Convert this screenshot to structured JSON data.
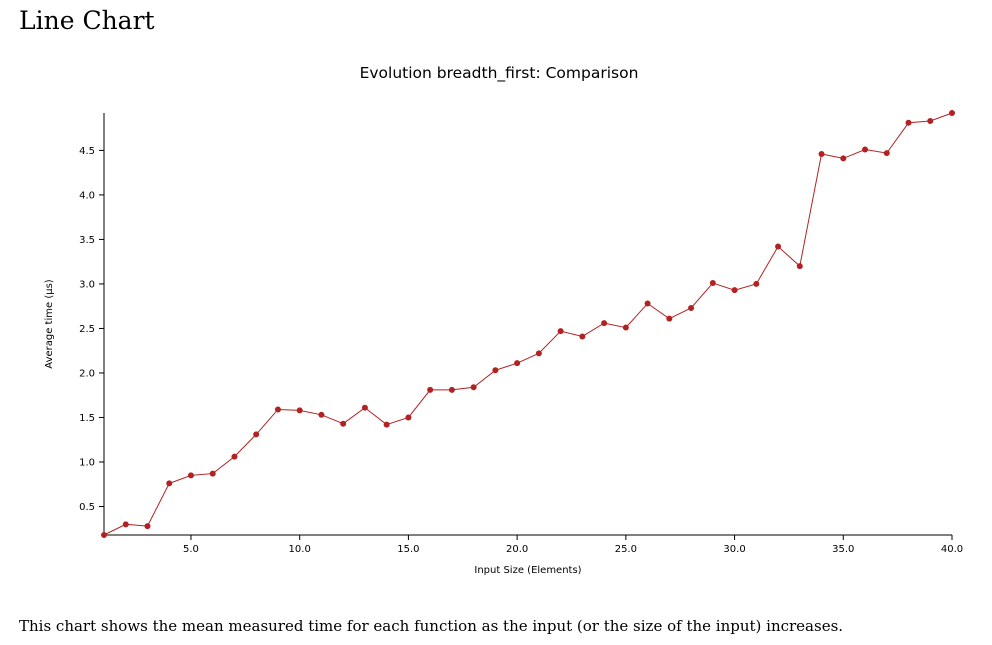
{
  "page": {
    "heading": "Line Chart",
    "description": "This chart shows the mean measured time for each function as the input (or the size of the input) increases."
  },
  "chart_data": {
    "type": "line",
    "title": "Evolution breadth_first: Comparison",
    "xlabel": "Input Size (Elements)",
    "ylabel": "Average time (µs)",
    "xlim": [
      1,
      40
    ],
    "ylim": [
      0.18,
      4.92
    ],
    "x_ticks": [
      5.0,
      10.0,
      15.0,
      20.0,
      25.0,
      30.0,
      35.0,
      40.0
    ],
    "x_tick_labels": [
      "5.0",
      "10.0",
      "15.0",
      "20.0",
      "25.0",
      "30.0",
      "35.0",
      "40.0"
    ],
    "y_ticks": [
      0.5,
      1.0,
      1.5,
      2.0,
      2.5,
      3.0,
      3.5,
      4.0,
      4.5
    ],
    "y_tick_labels": [
      "0.5",
      "1.0",
      "1.5",
      "2.0",
      "2.5",
      "3.0",
      "3.5",
      "4.0",
      "4.5"
    ],
    "grid": false,
    "series": [
      {
        "color": "#b22222",
        "x": [
          1,
          2,
          3,
          4,
          5,
          6,
          7,
          8,
          9,
          10,
          11,
          12,
          13,
          14,
          15,
          16,
          17,
          18,
          19,
          20,
          21,
          22,
          23,
          24,
          25,
          26,
          27,
          28,
          29,
          30,
          31,
          32,
          33,
          34,
          35,
          36,
          37,
          38,
          39,
          40
        ],
        "values": [
          0.18,
          0.3,
          0.28,
          0.76,
          0.85,
          0.87,
          1.06,
          1.31,
          1.59,
          1.58,
          1.53,
          1.43,
          1.61,
          1.42,
          1.5,
          1.81,
          1.81,
          1.84,
          2.03,
          2.11,
          2.22,
          2.47,
          2.41,
          2.56,
          2.51,
          2.78,
          2.61,
          2.73,
          3.01,
          2.93,
          3.0,
          3.42,
          3.2,
          4.46,
          4.41,
          4.51,
          4.47,
          4.81,
          4.83,
          4.92
        ]
      }
    ]
  }
}
